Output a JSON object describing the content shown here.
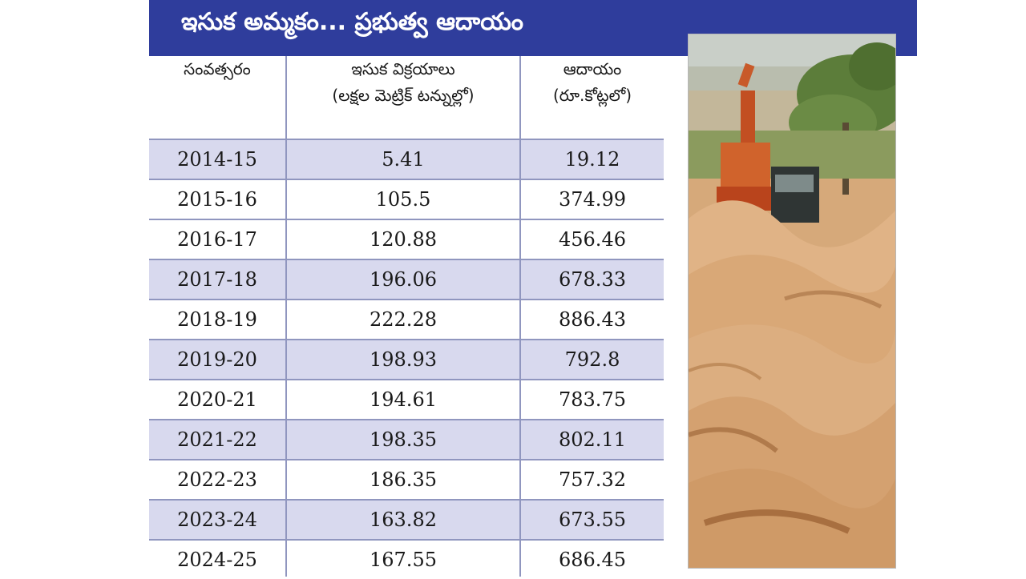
{
  "title": "ఇసుక అమ్మకం... ప్రభుత్వ ఆదాయం",
  "table": {
    "headers": [
      {
        "line1": "సంవత్సరం",
        "line2": ""
      },
      {
        "line1": "ఇసుక విక్రయాలు",
        "line2": "(లక్షల మెట్రిక్ టన్నుల్లో)"
      },
      {
        "line1": "ఆదాయం",
        "line2": "(రూ.కోట్లలో)"
      }
    ],
    "rows": [
      {
        "year": "2014-15",
        "sales": "5.41",
        "revenue": "19.12"
      },
      {
        "year": "2015-16",
        "sales": "105.5",
        "revenue": "374.99"
      },
      {
        "year": "2016-17",
        "sales": "120.88",
        "revenue": "456.46"
      },
      {
        "year": "2017-18",
        "sales": "196.06",
        "revenue": "678.33"
      },
      {
        "year": "2018-19",
        "sales": "222.28",
        "revenue": "886.43"
      },
      {
        "year": "2019-20",
        "sales": "198.93",
        "revenue": "792.8"
      },
      {
        "year": "2020-21",
        "sales": "194.61",
        "revenue": "783.75"
      },
      {
        "year": "2021-22",
        "sales": "198.35",
        "revenue": "802.11"
      },
      {
        "year": "2022-23",
        "sales": "186.35",
        "revenue": "757.32"
      },
      {
        "year": "2023-24",
        "sales": "163.82",
        "revenue": "673.55"
      },
      {
        "year": "2024-25",
        "sales": "167.55",
        "revenue": "686.45"
      }
    ]
  },
  "colors": {
    "title_bar": "#2f3d9c",
    "row_highlight": "#d8d9ee",
    "grid_line": "#9096bf"
  }
}
